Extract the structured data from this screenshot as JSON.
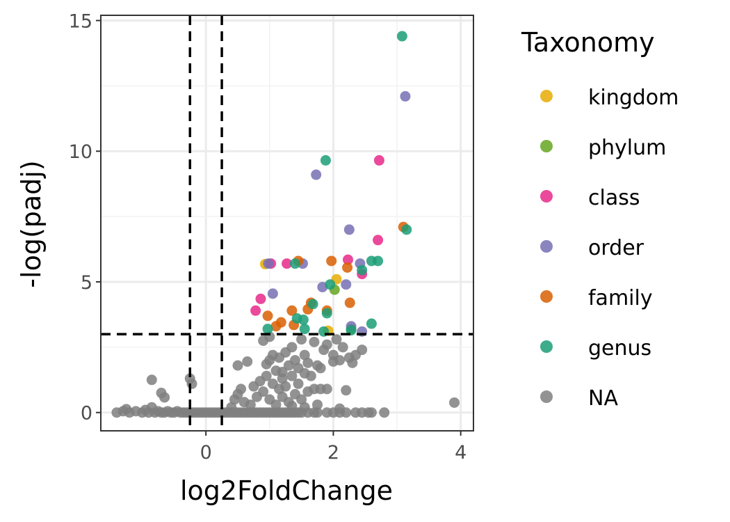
{
  "chart_data": {
    "type": "scatter",
    "xlabel": "log2FoldChange",
    "ylabel": "-log(padj)",
    "xlim": [
      -1.65,
      4.2
    ],
    "ylim": [
      -0.7,
      15.2
    ],
    "x_ticks": [
      0,
      2,
      4
    ],
    "y_ticks": [
      0,
      5,
      10,
      15
    ],
    "x_ticks_labels": [
      "0",
      "2",
      "4"
    ],
    "y_ticks_labels": [
      "0",
      "5",
      "10",
      "15"
    ],
    "grid": true,
    "thresholds": {
      "x": [
        -0.25,
        0.25
      ],
      "y": 3
    },
    "legend": {
      "title": "Taxonomy",
      "position": "right",
      "entries": [
        {
          "label": "kingdom",
          "color": "#e6ab02"
        },
        {
          "label": "phylum",
          "color": "#66a61e"
        },
        {
          "label": "class",
          "color": "#e7298a"
        },
        {
          "label": "order",
          "color": "#7570b3"
        },
        {
          "label": "family",
          "color": "#d95f02"
        },
        {
          "label": "genus",
          "color": "#1b9e77"
        },
        {
          "label": "NA",
          "color": "#7f7f7f"
        }
      ]
    },
    "series": [
      {
        "name": "NA",
        "points": [
          [
            -1.4,
            0
          ],
          [
            -1.3,
            0.05
          ],
          [
            -1.25,
            0.13
          ],
          [
            -1.2,
            0
          ],
          [
            -1.1,
            0.05
          ],
          [
            -1.0,
            0
          ],
          [
            -0.95,
            0.1
          ],
          [
            -0.9,
            0
          ],
          [
            -0.85,
            0.2
          ],
          [
            -0.8,
            0
          ],
          [
            -0.75,
            0.05
          ],
          [
            -0.7,
            0
          ],
          [
            -0.65,
            0
          ],
          [
            -0.6,
            0.05
          ],
          [
            -0.55,
            0
          ],
          [
            -0.5,
            0
          ],
          [
            -0.45,
            0.05
          ],
          [
            -0.4,
            0
          ],
          [
            -0.35,
            0
          ],
          [
            -0.3,
            0
          ],
          [
            -0.25,
            0
          ],
          [
            -0.2,
            0
          ],
          [
            -0.15,
            0
          ],
          [
            -0.1,
            0
          ],
          [
            -0.05,
            0
          ],
          [
            0,
            0
          ],
          [
            0.05,
            0
          ],
          [
            0.1,
            0
          ],
          [
            0.15,
            0
          ],
          [
            0.2,
            0
          ],
          [
            0.25,
            0
          ],
          [
            0.3,
            0
          ],
          [
            0.35,
            0
          ],
          [
            0.4,
            0
          ],
          [
            0.45,
            0
          ],
          [
            0.5,
            0
          ],
          [
            0.55,
            0
          ],
          [
            0.6,
            0
          ],
          [
            0.65,
            0
          ],
          [
            0.7,
            0
          ],
          [
            0.75,
            0
          ],
          [
            0.8,
            0
          ],
          [
            0.85,
            0
          ],
          [
            0.9,
            0
          ],
          [
            0.95,
            0
          ],
          [
            1.0,
            0
          ],
          [
            1.05,
            0
          ],
          [
            1.1,
            0
          ],
          [
            1.15,
            0
          ],
          [
            1.2,
            0
          ],
          [
            1.25,
            0
          ],
          [
            1.3,
            0
          ],
          [
            1.35,
            0
          ],
          [
            1.4,
            0
          ],
          [
            1.45,
            0
          ],
          [
            1.5,
            0
          ],
          [
            1.6,
            0
          ],
          [
            1.7,
            0
          ],
          [
            1.75,
            0
          ],
          [
            1.9,
            0
          ],
          [
            2.0,
            0
          ],
          [
            2.1,
            0
          ],
          [
            2.2,
            0
          ],
          [
            2.35,
            0
          ],
          [
            2.45,
            0
          ],
          [
            2.55,
            0
          ],
          [
            2.6,
            0
          ],
          [
            2.8,
            0
          ],
          [
            -0.85,
            1.25
          ],
          [
            -0.7,
            0.75
          ],
          [
            -0.65,
            0.58
          ],
          [
            -0.25,
            1.3
          ],
          [
            -0.22,
            1.1
          ],
          [
            3.9,
            0.38
          ],
          [
            0.5,
            1.8
          ],
          [
            0.5,
            0.7
          ],
          [
            0.55,
            0.9
          ],
          [
            0.6,
            0.4
          ],
          [
            0.65,
            1.95
          ],
          [
            0.7,
            0.3
          ],
          [
            0.75,
            1.0
          ],
          [
            0.8,
            0.6
          ],
          [
            0.85,
            1.2
          ],
          [
            0.9,
            0.8
          ],
          [
            0.95,
            1.85
          ],
          [
            0.95,
            1.4
          ],
          [
            1.0,
            2.0
          ],
          [
            1.0,
            0.5
          ],
          [
            1.05,
            2.2
          ],
          [
            1.05,
            1.1
          ],
          [
            1.1,
            1.6
          ],
          [
            1.1,
            0.3
          ],
          [
            1.15,
            2.1
          ],
          [
            1.15,
            0.9
          ],
          [
            1.2,
            1.3
          ],
          [
            1.2,
            0.6
          ],
          [
            1.25,
            2.3
          ],
          [
            1.25,
            1.0
          ],
          [
            1.3,
            1.8
          ],
          [
            1.3,
            0.4
          ],
          [
            1.35,
            2.5
          ],
          [
            1.35,
            1.4
          ],
          [
            1.4,
            2.0
          ],
          [
            1.4,
            0.7
          ],
          [
            1.45,
            1.7
          ],
          [
            1.45,
            1.1
          ],
          [
            1.5,
            2.8
          ],
          [
            1.5,
            0.5
          ],
          [
            1.55,
            2.2
          ],
          [
            1.55,
            1.5
          ],
          [
            1.6,
            1.9
          ],
          [
            1.6,
            0.8
          ],
          [
            1.65,
            1.4
          ],
          [
            1.7,
            2.7
          ],
          [
            1.7,
            0.9
          ],
          [
            1.75,
            1.8
          ],
          [
            1.8,
            1.7
          ],
          [
            1.8,
            0.9
          ],
          [
            1.85,
            2.4
          ],
          [
            1.9,
            2.6
          ],
          [
            1.9,
            0.9
          ],
          [
            2.0,
            2.2
          ],
          [
            2.0,
            1.95
          ],
          [
            2.05,
            2.8
          ],
          [
            2.1,
            2.0
          ],
          [
            2.15,
            2.5
          ],
          [
            2.2,
            0.85
          ],
          [
            2.25,
            2.1
          ],
          [
            2.3,
            1.9
          ],
          [
            2.35,
            2.2
          ],
          [
            2.45,
            2.4
          ],
          [
            0.9,
            2.75
          ],
          [
            1.0,
            2.9
          ],
          [
            1.2,
            1.55
          ],
          [
            1.35,
            0.25
          ],
          [
            1.55,
            0.2
          ],
          [
            1.75,
            0.3
          ],
          [
            2.1,
            0.15
          ],
          [
            0.4,
            0.2
          ],
          [
            0.45,
            0.5
          ]
        ]
      },
      {
        "name": "kingdom",
        "points": [
          [
            0.93,
            5.68
          ],
          [
            2.05,
            5.1
          ],
          [
            1.92,
            3.13
          ]
        ]
      },
      {
        "name": "phylum",
        "points": [
          [
            2.02,
            4.7
          ],
          [
            2.28,
            3.2
          ]
        ]
      },
      {
        "name": "class",
        "points": [
          [
            0.78,
            3.9
          ],
          [
            0.86,
            4.35
          ],
          [
            1.02,
            5.7
          ],
          [
            1.27,
            5.7
          ],
          [
            2.23,
            5.85
          ],
          [
            2.45,
            5.3
          ],
          [
            2.7,
            6.6
          ],
          [
            2.72,
            9.65
          ]
        ]
      },
      {
        "name": "order",
        "points": [
          [
            0.98,
            5.7
          ],
          [
            1.05,
            4.55
          ],
          [
            1.52,
            5.7
          ],
          [
            1.73,
            9.1
          ],
          [
            1.83,
            4.8
          ],
          [
            2.2,
            4.9
          ],
          [
            2.25,
            7.0
          ],
          [
            2.42,
            5.7
          ],
          [
            2.28,
            3.3
          ],
          [
            2.45,
            3.1
          ],
          [
            3.13,
            12.1
          ]
        ]
      },
      {
        "name": "family",
        "points": [
          [
            0.97,
            3.7
          ],
          [
            1.1,
            3.3
          ],
          [
            1.18,
            3.45
          ],
          [
            1.35,
            3.9
          ],
          [
            1.38,
            3.35
          ],
          [
            1.45,
            5.8
          ],
          [
            1.6,
            3.95
          ],
          [
            1.65,
            4.2
          ],
          [
            1.9,
            3.9
          ],
          [
            1.97,
            5.8
          ],
          [
            2.22,
            5.55
          ],
          [
            2.26,
            4.2
          ],
          [
            3.1,
            7.1
          ]
        ]
      },
      {
        "name": "genus",
        "points": [
          [
            0.97,
            3.2
          ],
          [
            1.4,
            5.7
          ],
          [
            1.43,
            3.6
          ],
          [
            1.53,
            3.55
          ],
          [
            1.55,
            3.2
          ],
          [
            1.68,
            4.15
          ],
          [
            1.85,
            3.1
          ],
          [
            1.88,
            9.65
          ],
          [
            1.9,
            3.8
          ],
          [
            1.95,
            4.9
          ],
          [
            2.28,
            3.15
          ],
          [
            2.45,
            5.45
          ],
          [
            2.6,
            3.4
          ],
          [
            2.6,
            5.8
          ],
          [
            2.7,
            5.8
          ],
          [
            3.08,
            14.4
          ],
          [
            3.15,
            7.0
          ]
        ]
      }
    ]
  }
}
